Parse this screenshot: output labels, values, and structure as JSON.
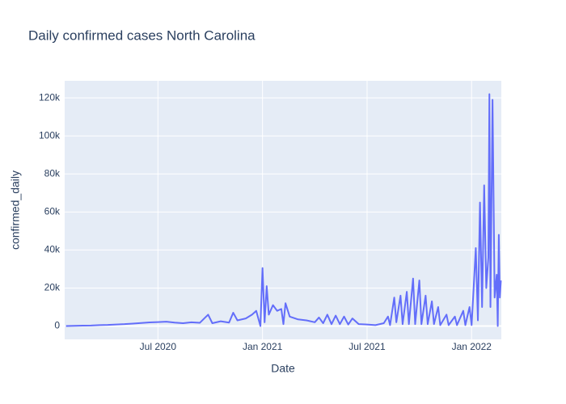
{
  "chart_data": {
    "type": "line",
    "title": "Daily confirmed cases North Carolina",
    "x_label": "Date",
    "y_label": "confirmed_daily",
    "grid": true,
    "xlim": [
      2020.054,
      2022.142
    ],
    "ylim": [
      -7000,
      129000
    ],
    "xticks": [
      {
        "value": 2020.5,
        "label": "Jul 2020"
      },
      {
        "value": 2021,
        "label": "Jan 2021"
      },
      {
        "value": 2021.5,
        "label": "Jul 2021"
      },
      {
        "value": 2022,
        "label": "Jan 2022"
      }
    ],
    "yticks": [
      0,
      {
        "value": 20000,
        "label": "20k"
      },
      {
        "value": 40000,
        "label": "40k"
      },
      {
        "value": 60000,
        "label": "60k"
      },
      {
        "value": 80000,
        "label": "80k"
      },
      {
        "value": 100000,
        "label": "100k"
      },
      {
        "value": 120000,
        "label": "120k"
      }
    ],
    "x": [
      2020.06,
      2020.1,
      2020.14,
      2020.18,
      2020.22,
      2020.26,
      2020.3,
      2020.34,
      2020.38,
      2020.42,
      2020.46,
      2020.5,
      2020.54,
      2020.58,
      2020.62,
      2020.66,
      2020.7,
      2020.74,
      2020.76,
      2020.8,
      2020.84,
      2020.86,
      2020.88,
      2020.92,
      2020.95,
      2020.97,
      2020.99,
      2021.0,
      2021.01,
      2021.02,
      2021.03,
      2021.05,
      2021.07,
      2021.09,
      2021.1,
      2021.11,
      2021.13,
      2021.17,
      2021.21,
      2021.25,
      2021.27,
      2021.29,
      2021.31,
      2021.33,
      2021.35,
      2021.37,
      2021.39,
      2021.41,
      2021.43,
      2021.46,
      2021.5,
      2021.54,
      2021.58,
      2021.6,
      2021.61,
      2021.63,
      2021.64,
      2021.66,
      2021.67,
      2021.69,
      2021.7,
      2021.72,
      2021.73,
      2021.75,
      2021.76,
      2021.78,
      2021.79,
      2021.81,
      2021.82,
      2021.84,
      2021.85,
      2021.88,
      2021.89,
      2021.92,
      2021.93,
      2021.96,
      2021.97,
      2021.99,
      2022.0,
      2022.02,
      2022.03,
      2022.04,
      2022.05,
      2022.06,
      2022.07,
      2022.08,
      2022.085,
      2022.09,
      2022.1,
      2022.11,
      2022.12,
      2022.125,
      2022.13,
      2022.135,
      2022.14
    ],
    "series": [
      {
        "name": "confirmed_daily",
        "color": "#636efa",
        "values": [
          0,
          100,
          200,
          300,
          500,
          600,
          800,
          1000,
          1300,
          1600,
          1900,
          2100,
          2300,
          1800,
          1500,
          2000,
          1700,
          6000,
          1500,
          2500,
          1800,
          7000,
          3000,
          4000,
          6000,
          8000,
          0,
          30500,
          2000,
          21000,
          6000,
          11000,
          8000,
          9000,
          1000,
          12000,
          5000,
          3500,
          3000,
          2000,
          4500,
          1500,
          6000,
          1000,
          5500,
          1000,
          5000,
          800,
          4000,
          1000,
          800,
          500,
          1500,
          5000,
          500,
          15000,
          2000,
          16000,
          1000,
          18000,
          1000,
          25000,
          1000,
          24000,
          1000,
          16000,
          1000,
          13000,
          1000,
          10000,
          500,
          6000,
          500,
          5000,
          500,
          8000,
          500,
          10000,
          500,
          41000,
          3000,
          65000,
          10000,
          74000,
          20000,
          36000,
          122000,
          10000,
          119000,
          15000,
          27000,
          0,
          48000,
          15000,
          24000
        ]
      }
    ]
  }
}
